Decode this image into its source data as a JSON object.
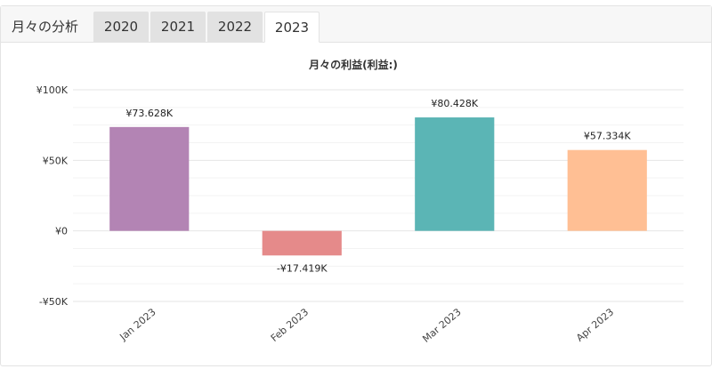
{
  "tabs": {
    "title": "月々の分析",
    "items": [
      {
        "label": "2020",
        "active": false
      },
      {
        "label": "2021",
        "active": false
      },
      {
        "label": "2022",
        "active": false
      },
      {
        "label": "2023",
        "active": true
      }
    ]
  },
  "chart_data": {
    "type": "bar",
    "title": "月々の利益(利益:)",
    "categories": [
      "Jan 2023",
      "Feb 2023",
      "Mar 2023",
      "Apr 2023"
    ],
    "values": [
      73.628,
      -17.419,
      80.428,
      57.334
    ],
    "value_unit": "thousands of yen",
    "data_labels": [
      "¥73.628K",
      "-¥17.419K",
      "¥80.428K",
      "¥57.334K"
    ],
    "colors": [
      "#b384b4",
      "#e58a8a",
      "#5bb5b5",
      "#ffbf94"
    ],
    "y_ticks": [
      {
        "value": 100,
        "label": "¥100K"
      },
      {
        "value": 50,
        "label": "¥50K"
      },
      {
        "value": 0,
        "label": "¥0"
      },
      {
        "value": -50,
        "label": "-¥50K"
      }
    ],
    "ylim": [
      -50,
      100
    ],
    "grid": true,
    "legend": false,
    "xlabel": "",
    "ylabel": ""
  }
}
